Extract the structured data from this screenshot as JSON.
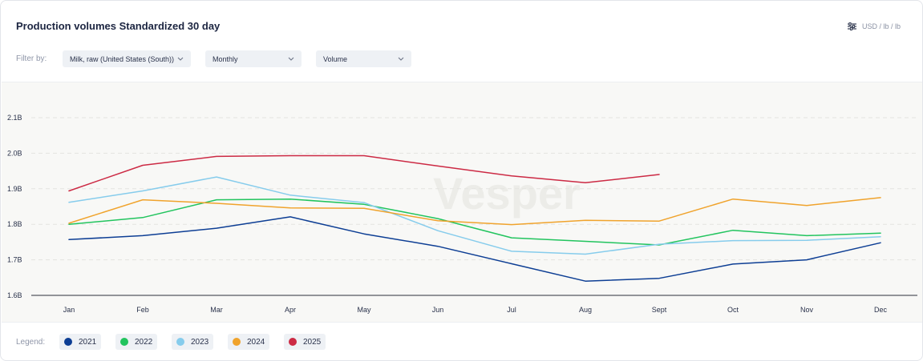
{
  "header": {
    "title": "Production volumes Standardized 30 day",
    "unit_label": "USD / lb / lb",
    "unit_icon": "sliders-icon"
  },
  "filters": {
    "label": "Filter by:",
    "commodity": "Milk, raw (United States (South))",
    "frequency": "Monthly",
    "measure": "Volume"
  },
  "watermark": "Vesper",
  "legend": {
    "label": "Legend:"
  },
  "chart_data": {
    "type": "line",
    "categories": [
      "Jan",
      "Feb",
      "Mar",
      "Apr",
      "May",
      "Jun",
      "Jul",
      "Aug",
      "Sept",
      "Oct",
      "Nov",
      "Dec"
    ],
    "yticks": [
      "2.1B",
      "2.0B",
      "1.9B",
      "1.8B",
      "1.7B",
      "1.6B"
    ],
    "ytick_values": [
      2.1,
      2.0,
      1.9,
      1.8,
      1.7,
      1.6
    ],
    "ylim": [
      1.6,
      2.1
    ],
    "y_unit": "billions",
    "grid": true,
    "legend_position": "bottom",
    "series": [
      {
        "name": "2021",
        "color": "#0d3e94",
        "values": [
          1.757,
          1.768,
          1.789,
          1.821,
          1.773,
          1.738,
          1.689,
          1.64,
          1.648,
          1.688,
          1.7,
          1.748
        ]
      },
      {
        "name": "2022",
        "color": "#22c45e",
        "values": [
          1.8,
          1.819,
          1.869,
          1.871,
          1.856,
          1.816,
          1.762,
          1.752,
          1.742,
          1.783,
          1.768,
          1.775
        ]
      },
      {
        "name": "2023",
        "color": "#86ccec",
        "values": [
          1.862,
          1.894,
          1.933,
          1.882,
          1.861,
          1.782,
          1.724,
          1.716,
          1.744,
          1.754,
          1.755,
          1.765
        ]
      },
      {
        "name": "2024",
        "color": "#f0a32c",
        "values": [
          1.803,
          1.869,
          1.859,
          1.846,
          1.845,
          1.81,
          1.799,
          1.811,
          1.809,
          1.871,
          1.853,
          1.875
        ]
      },
      {
        "name": "2025",
        "color": "#cc2a44",
        "values": [
          1.894,
          1.966,
          1.991,
          1.993,
          1.993,
          1.964,
          1.936,
          1.917,
          1.94,
          null,
          null,
          null
        ]
      }
    ]
  }
}
